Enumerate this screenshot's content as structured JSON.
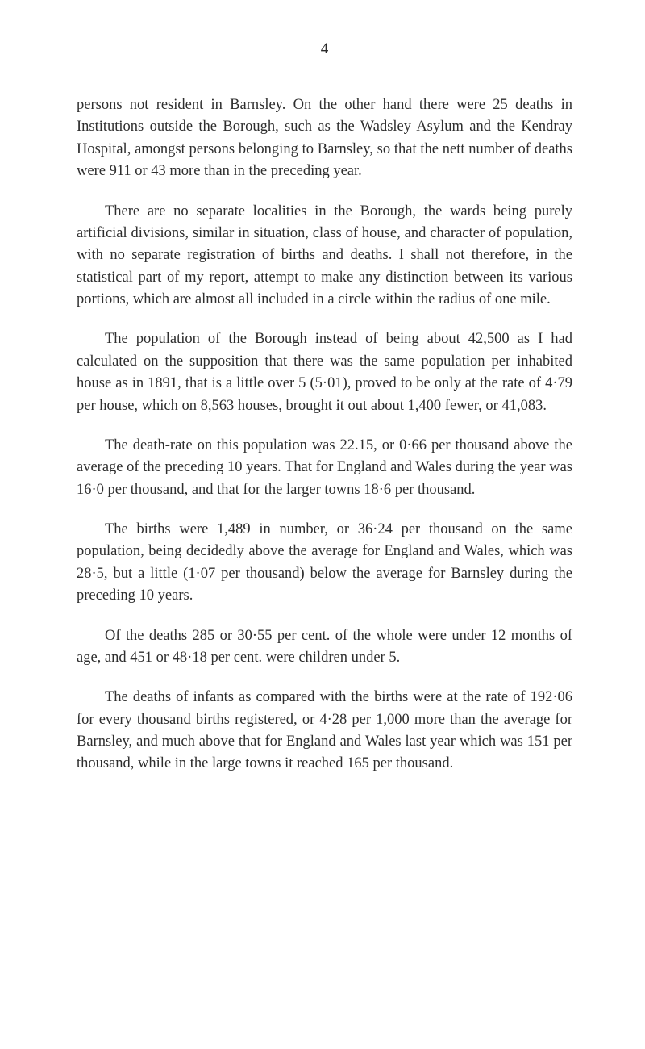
{
  "page_number": "4",
  "paragraphs": {
    "p1": "persons not resident in Barnsley. On the other hand there were 25 deaths in Institutions outside the Borough, such as the Wadsley Asylum and the Kendray Hospital, amongst persons belonging to Barnsley, so that the nett number of deaths were 911 or 43 more than in the preceding year.",
    "p2": "There are no separate localities in the Borough, the wards being purely artificial divisions, similar in situation, class of house, and character of population, with no separate registration of births and deaths. I shall not therefore, in the statistical part of my report, attempt to make any distinction between its various portions, which are almost all included in a circle within the radius of one mile.",
    "p3": "The population of the Borough instead of being about 42,500 as I had calculated on the supposition that there was the same population per inhabited house as in 1891, that is a little over 5 (5·01), proved to be only at the rate of 4·79 per house, which on 8,563 houses, brought it out about 1,400 fewer, or 41,083.",
    "p4": "The death-rate on this population was 22.15, or 0·66 per thousand above the average of the preceding 10 years. That for England and Wales during the year was 16·0 per thousand, and that for the larger towns 18·6 per thousand.",
    "p5": "The births were 1,489 in number, or 36·24 per thousand on the same population, being decidedly above the average for England and Wales, which was 28·5, but a little (1·07 per thousand) below the average for Barnsley during the preceding 10 years.",
    "p6": "Of the deaths 285 or 30·55 per cent. of the whole were under 12 months of age, and 451 or 48·18 per cent. were children under 5.",
    "p7": "The deaths of infants as compared with the births were at the rate of 192·06 for every thousand births registered, or 4·28 per 1,000 more than the average for Barnsley, and much above that for England and Wales last year which was 151 per thousand, while in the large towns it reached 165 per thousand."
  }
}
